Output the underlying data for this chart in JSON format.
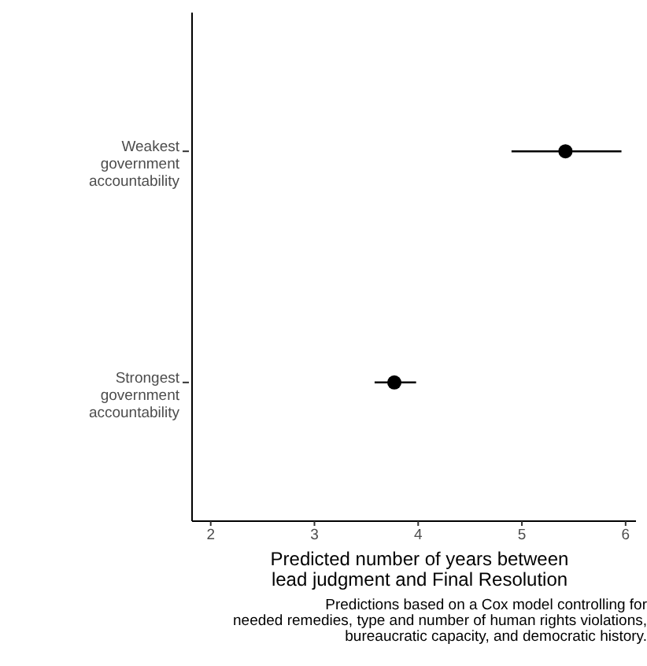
{
  "chart_data": {
    "type": "scatter",
    "categories": [
      "Weakest government accountability",
      "Strongest government accountability"
    ],
    "orientation": "horizontal",
    "series": [
      {
        "color": "#000000",
        "values": [
          5.42,
          3.77
        ],
        "errors": [
          [
            4.9,
            5.96
          ],
          [
            3.58,
            3.98
          ]
        ]
      }
    ],
    "xlim": [
      1.82,
      6.1
    ],
    "xticks": [
      2,
      3,
      4,
      5,
      6
    ],
    "xlabel": "Predicted number of years between\nlead judgment and Final Resolution",
    "annotations": [
      "Predictions based on a Cox model controlling for\nneeded remedies, type and number of human rights violations,\nbureaucratic capacity, and democratic history."
    ],
    "marker": "circle",
    "grid": false,
    "legend": false
  }
}
